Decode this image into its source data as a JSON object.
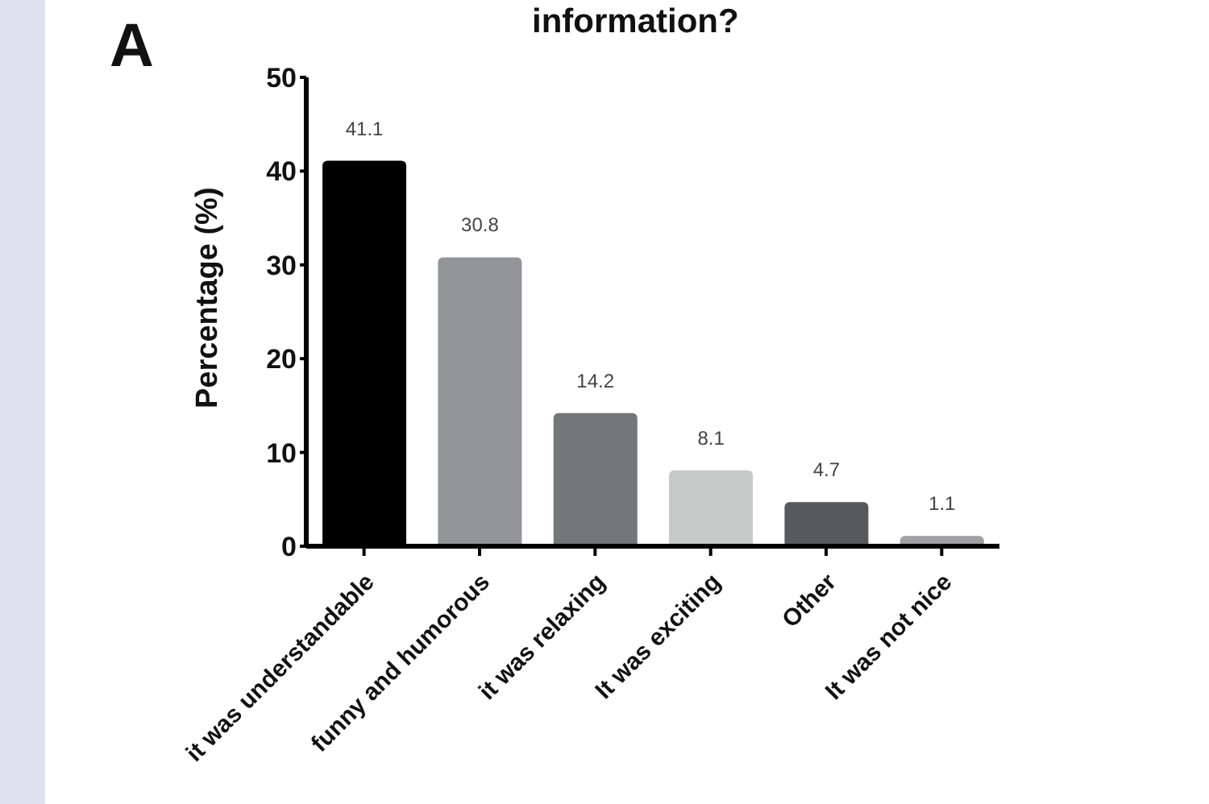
{
  "chart_data": {
    "type": "bar",
    "title": "information?",
    "ylabel": "Percentage (%)",
    "annotations": [
      "A"
    ],
    "categories": [
      "it was understandable",
      "funny  and humorous",
      "it was relaxing",
      "It was exciting",
      "Other",
      "It was not nice"
    ],
    "values": [
      41.1,
      30.8,
      14.2,
      8.1,
      4.7,
      1.1
    ],
    "colors": [
      "#000000",
      "#939598",
      "#747777",
      "#c8caca",
      "#58595b",
      "#a0a0a2"
    ],
    "ylim": [
      0,
      50
    ],
    "yticks": [
      0,
      10,
      20,
      30,
      40,
      50
    ],
    "data_labels": true,
    "grid": false,
    "legend": false
  }
}
